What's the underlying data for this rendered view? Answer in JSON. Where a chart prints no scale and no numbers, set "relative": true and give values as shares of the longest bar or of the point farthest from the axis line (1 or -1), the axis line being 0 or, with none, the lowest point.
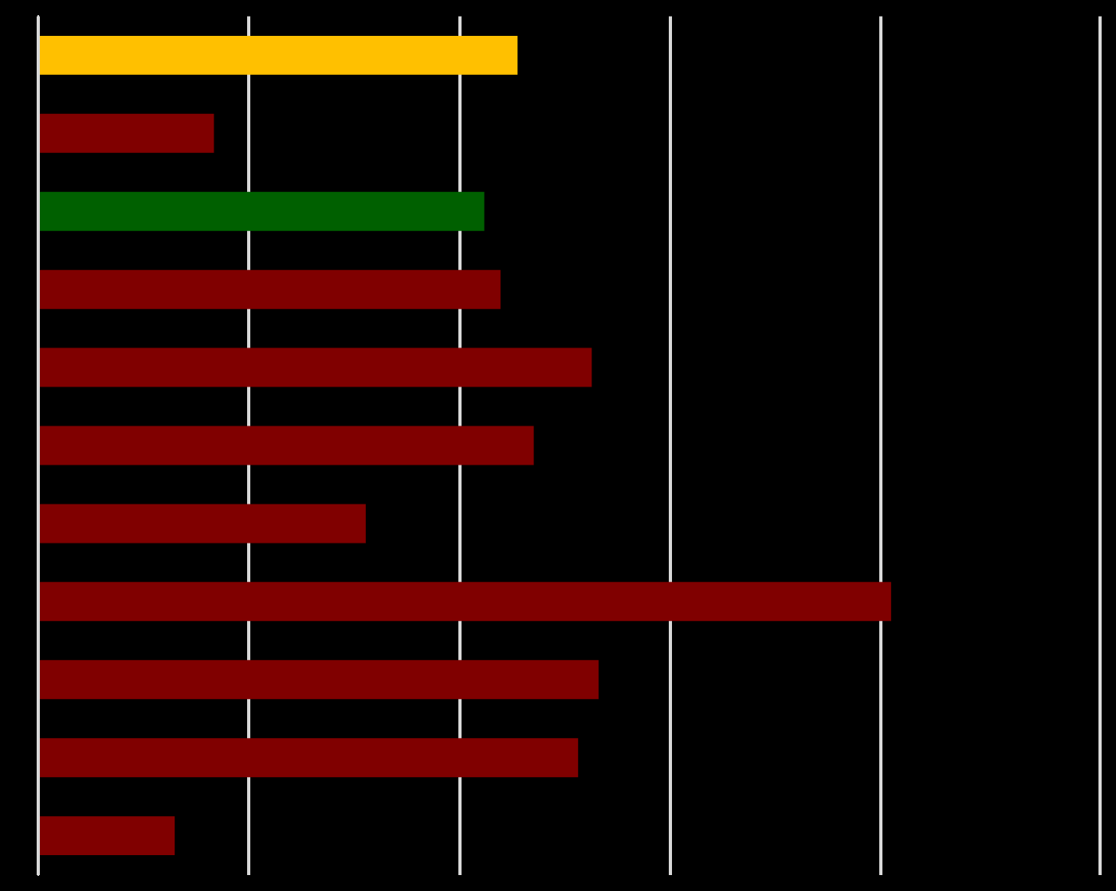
{
  "chart_data": {
    "type": "bar",
    "orientation": "horizontal",
    "relative": true,
    "grid": true,
    "categories": [
      null,
      null,
      null,
      null,
      null,
      null,
      null,
      null,
      null,
      null,
      null
    ],
    "values": [
      0.562,
      0.206,
      0.523,
      0.542,
      0.649,
      0.581,
      0.384,
      1,
      0.657,
      0.633,
      0.16
    ],
    "colors": [
      "#ffc000",
      "#800000",
      "#006000",
      "#800000",
      "#800000",
      "#800000",
      "#800000",
      "#800000",
      "#800000",
      "#800000",
      "#800000"
    ]
  }
}
